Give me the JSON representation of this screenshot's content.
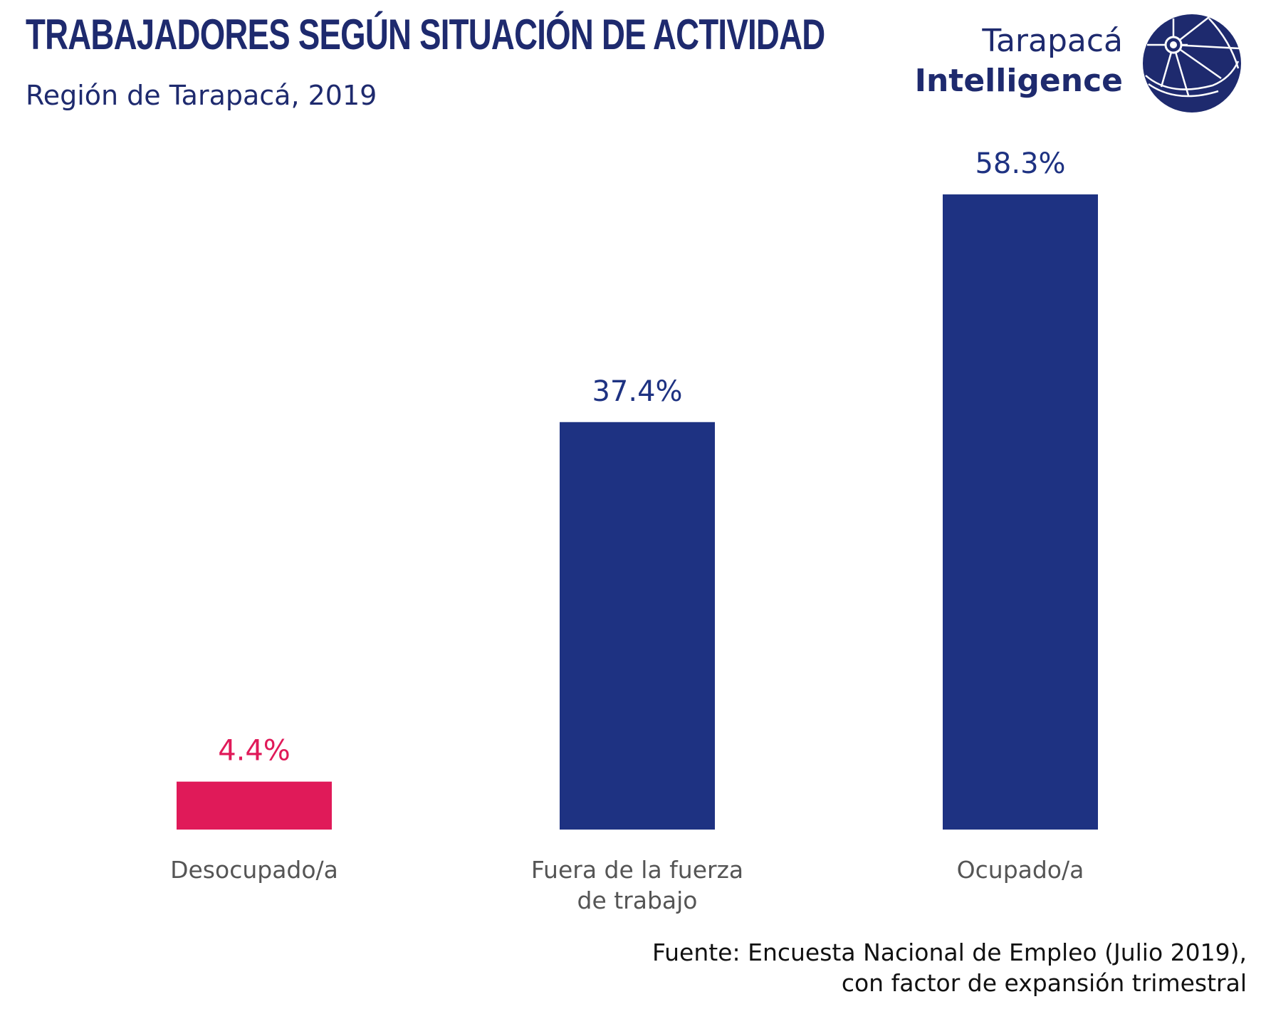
{
  "header": {
    "title": "TRABAJADORES SEGÚN SITUACIÓN DE ACTIVIDAD",
    "subtitle": "Región de Tarapacá, 2019"
  },
  "brand": {
    "name_line1": "Tarapacá",
    "name_line2": "Intelligence",
    "icon": "globe-emblem-icon",
    "color": "#1e2a6e"
  },
  "footer": {
    "source_line1": "Fuente: Encuesta Nacional de Empleo (Julio 2019),",
    "source_line2": "con factor de expansión trimestral"
  },
  "chart_data": {
    "type": "bar",
    "categories": [
      [
        "Desocupado/a"
      ],
      [
        "Fuera de la fuerza",
        "de trabajo"
      ],
      [
        "Ocupado/a"
      ]
    ],
    "values": [
      4.4,
      37.4,
      58.3
    ],
    "value_labels": [
      "4.4%",
      "37.4%",
      "58.3%"
    ],
    "colors": [
      "#e01a59",
      "#1e3282",
      "#1e3282"
    ],
    "label_colors": [
      "#e01a59",
      "#1e3282",
      "#1e3282"
    ],
    "title": "TRABAJADORES SEGÚN SITUACIÓN DE ACTIVIDAD",
    "xlabel": "",
    "ylabel": "",
    "ylim": [
      0,
      60
    ],
    "grid": false,
    "legend": "none"
  }
}
